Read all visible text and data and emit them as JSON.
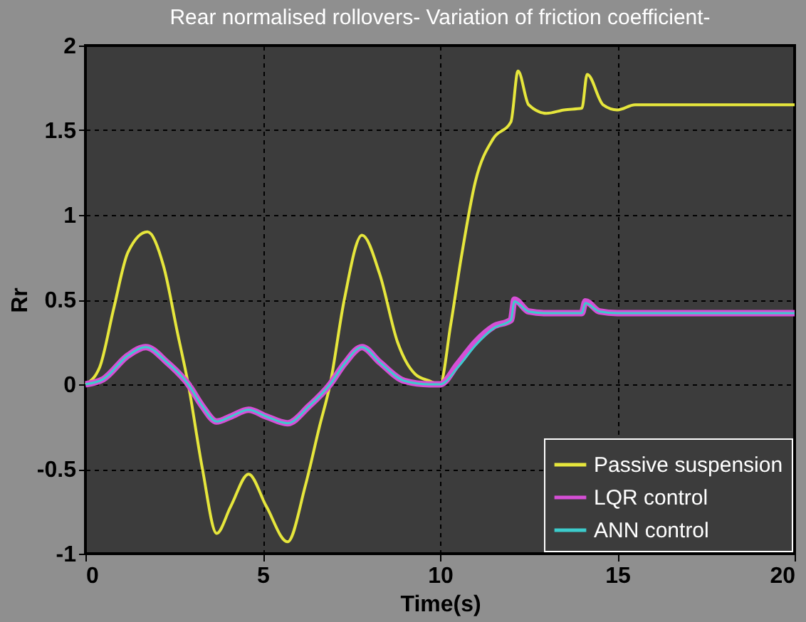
{
  "chart_data": {
    "type": "line",
    "title": "Rear normalised rollovers- Variation of friction coefficient-",
    "xlabel": "Time(s)",
    "ylabel": "Rr",
    "xlim": [
      0,
      20
    ],
    "xticks": [
      0,
      5,
      10,
      15,
      20
    ],
    "ylim": [
      -1,
      2
    ],
    "yticks": [
      -1,
      -0.5,
      0,
      0.5,
      1,
      1.5,
      2
    ],
    "grid": true,
    "legend": "bottom right",
    "line_style": "solid",
    "series": [
      {
        "name": "Passive suspension",
        "color": "#e6e63c",
        "x": [
          0,
          0.4,
          0.8,
          1.2,
          1.75,
          2.2,
          2.6,
          2.9,
          3.3,
          3.7,
          4.1,
          4.6,
          5.1,
          5.7,
          6.2,
          6.6,
          6.9,
          7.3,
          7.8,
          8.3,
          8.8,
          9.3,
          9.7,
          10,
          10.3,
          10.6,
          11,
          11.5,
          12,
          12.2,
          12.5,
          13,
          13.5,
          14,
          14.15,
          14.6,
          15,
          15.5,
          20
        ],
        "values": [
          0,
          0.1,
          0.45,
          0.78,
          0.9,
          0.7,
          0.3,
          0,
          -0.5,
          -0.88,
          -0.72,
          -0.53,
          -0.72,
          -0.93,
          -0.6,
          -0.25,
          0,
          0.5,
          0.88,
          0.65,
          0.25,
          0.06,
          0.02,
          0,
          0.35,
          0.75,
          1.2,
          1.45,
          1.55,
          1.85,
          1.65,
          1.6,
          1.62,
          1.63,
          1.83,
          1.65,
          1.62,
          1.65,
          1.65
        ]
      },
      {
        "name": "LQR control",
        "color": "#d64fd6",
        "x": [
          0,
          0.5,
          1.2,
          1.7,
          2.3,
          2.9,
          3.3,
          3.7,
          4.1,
          4.6,
          5.1,
          5.7,
          6.3,
          6.9,
          7.3,
          7.8,
          8.3,
          9,
          9.7,
          10,
          10.5,
          11,
          11.5,
          12,
          12.1,
          12.5,
          13,
          14,
          14.1,
          14.5,
          15,
          20
        ],
        "values": [
          0,
          0.03,
          0.17,
          0.22,
          0.13,
          0,
          -0.13,
          -0.22,
          -0.19,
          -0.15,
          -0.19,
          -0.23,
          -0.13,
          0,
          0.12,
          0.22,
          0.13,
          0.02,
          0,
          0,
          0.12,
          0.25,
          0.34,
          0.38,
          0.5,
          0.43,
          0.42,
          0.42,
          0.49,
          0.43,
          0.42,
          0.42
        ]
      },
      {
        "name": "ANN control",
        "color": "#3ccccc",
        "x": [
          0,
          0.5,
          1.2,
          1.7,
          2.3,
          2.9,
          3.3,
          3.7,
          4.1,
          4.6,
          5.1,
          5.7,
          6.3,
          6.9,
          7.3,
          7.8,
          8.3,
          9,
          9.7,
          10,
          10.5,
          11,
          11.5,
          12,
          12.1,
          12.5,
          13,
          14,
          14.1,
          14.5,
          15,
          20
        ],
        "values": [
          0,
          0.03,
          0.17,
          0.22,
          0.13,
          0,
          -0.13,
          -0.22,
          -0.19,
          -0.15,
          -0.19,
          -0.23,
          -0.13,
          0,
          0.12,
          0.22,
          0.13,
          0.02,
          0,
          0,
          0.1,
          0.23,
          0.33,
          0.38,
          0.49,
          0.43,
          0.42,
          0.42,
          0.48,
          0.43,
          0.42,
          0.42
        ]
      }
    ]
  }
}
